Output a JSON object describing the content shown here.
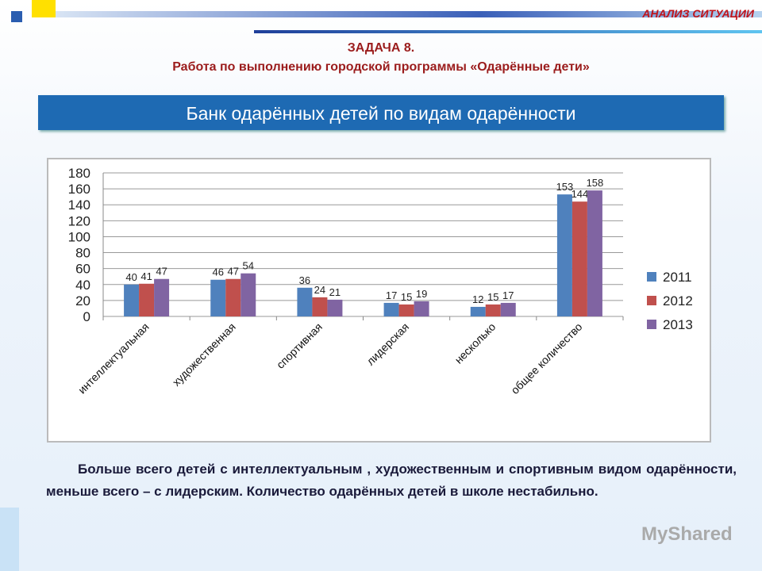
{
  "section_label": "АНАЛИЗ СИТУАЦИИ",
  "task_title": "ЗАДАЧА 8.",
  "task_subtitle": "Работа по выполнению городской программы «Одарённые дети»",
  "conclusion": "Больше всего детей  с интеллектуальным , художественным и спортивным видом одарённости, меньше всего –  с лидерским. Количество одарённых детей в школе нестабильно.",
  "watermark": "MyShared",
  "chart_data": {
    "type": "bar",
    "title": "Банк одарённых детей по видам одарённости",
    "categories": [
      "интеллектуальная",
      "художественная",
      "спортивная",
      "лидерская",
      "несколько",
      "общее количество"
    ],
    "series": [
      {
        "name": "2011",
        "color": "#4f81bd",
        "values": [
          40,
          46,
          36,
          17,
          12,
          153
        ]
      },
      {
        "name": "2012",
        "color": "#c0504d",
        "values": [
          41,
          47,
          24,
          15,
          15,
          144
        ]
      },
      {
        "name": "2013",
        "color": "#8064a2",
        "values": [
          47,
          54,
          21,
          19,
          17,
          158
        ]
      }
    ],
    "ylim": [
      0,
      180
    ],
    "yticks": [
      0,
      20,
      40,
      60,
      80,
      100,
      120,
      140,
      160,
      180
    ],
    "grid": true,
    "legend": "right"
  }
}
